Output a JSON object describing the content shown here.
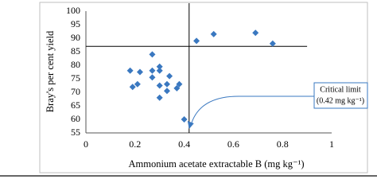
{
  "chart_data": {
    "type": "scatter",
    "x": [
      0.18,
      0.19,
      0.21,
      0.22,
      0.27,
      0.27,
      0.27,
      0.3,
      0.3,
      0.3,
      0.3,
      0.33,
      0.33,
      0.34,
      0.37,
      0.38,
      0.4,
      0.45,
      0.52,
      0.69,
      0.76
    ],
    "values": [
      78,
      72,
      73,
      77.5,
      84,
      78,
      75.5,
      72.5,
      79.5,
      78,
      68,
      73,
      70.5,
      76,
      71.5,
      73,
      60,
      89,
      91.5,
      92,
      88
    ],
    "color": "#3a78c0",
    "xlim": [
      0,
      1
    ],
    "xticks": [
      0,
      0.2,
      0.4,
      0.6,
      0.8,
      1
    ],
    "ylim": [
      55,
      100
    ],
    "yticks": [
      55,
      60,
      65,
      70,
      75,
      80,
      85,
      90,
      95,
      100
    ],
    "xlabel": "Ammonium acetate extractable B (mg kg⁻¹)",
    "ylabel": "Bray's per cent yield",
    "hline": 87,
    "vline": 0.42,
    "annotation": [
      "Critical limit",
      "(0.42 mg kg⁻¹)"
    ]
  }
}
